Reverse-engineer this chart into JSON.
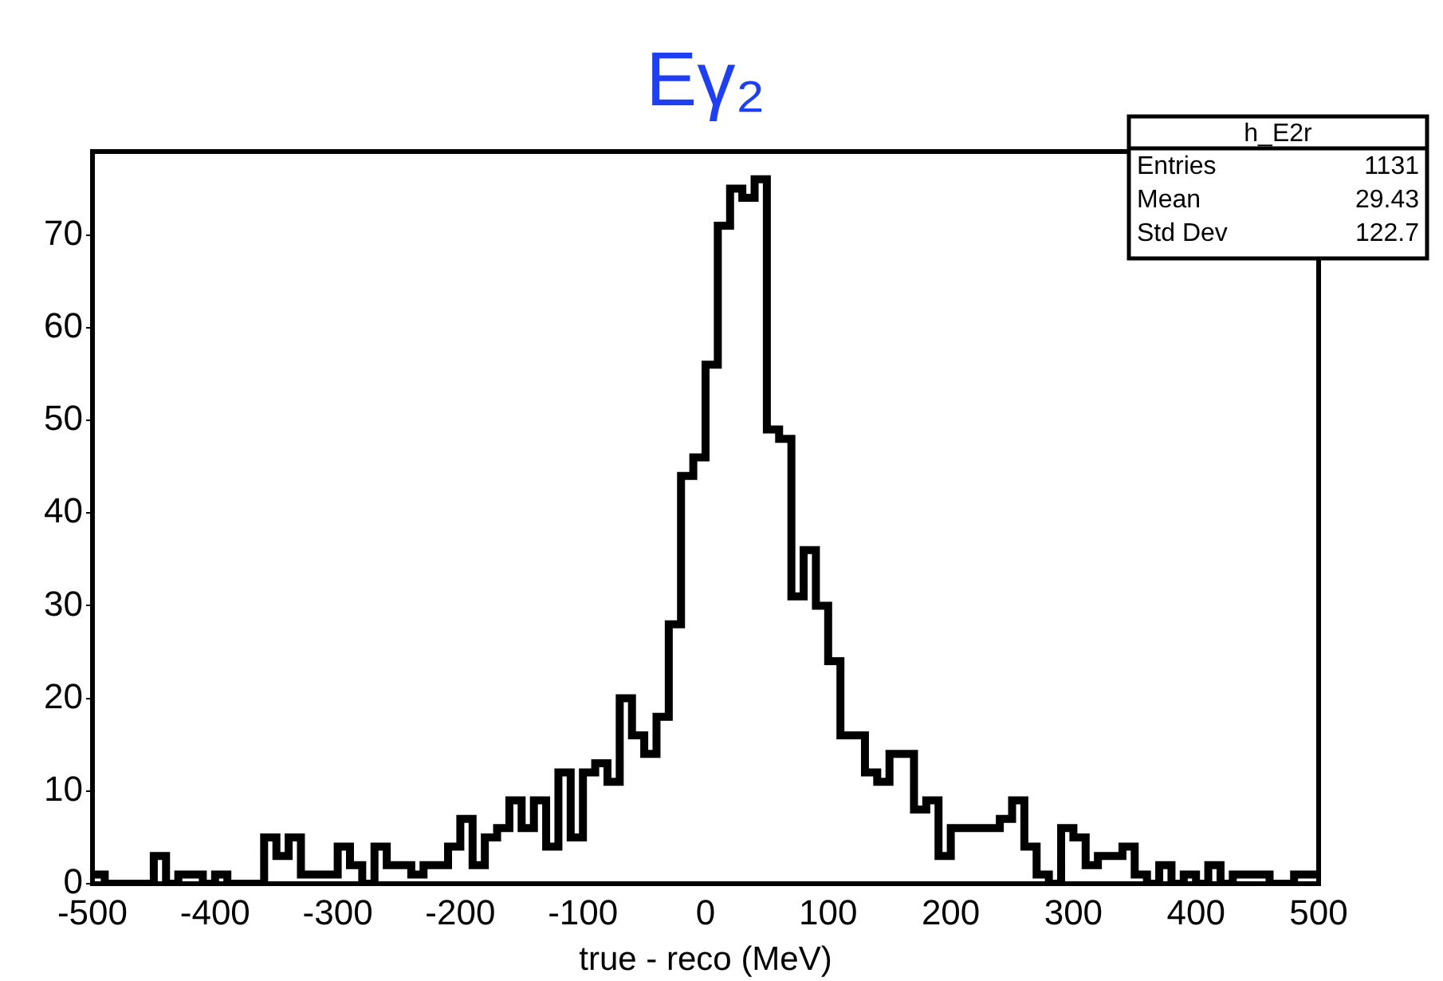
{
  "chart_data": {
    "type": "histogram",
    "title": "Eγ₂",
    "xlabel": "true - reco (MeV)",
    "bins": [
      -500,
      -490,
      -480,
      -470,
      -460,
      -450,
      -440,
      -430,
      -420,
      -410,
      -400,
      -390,
      -380,
      -370,
      -360,
      -350,
      -340,
      -330,
      -320,
      -310,
      -300,
      -290,
      -280,
      -270,
      -260,
      -250,
      -240,
      -230,
      -220,
      -210,
      -200,
      -190,
      -180,
      -170,
      -160,
      -150,
      -140,
      -130,
      -120,
      -110,
      -100,
      -90,
      -80,
      -70,
      -60,
      -50,
      -40,
      -30,
      -20,
      -10,
      0,
      10,
      20,
      30,
      40,
      50,
      60,
      70,
      80,
      90,
      100,
      110,
      120,
      130,
      140,
      150,
      160,
      170,
      180,
      190,
      200,
      210,
      220,
      230,
      240,
      250,
      260,
      270,
      280,
      290,
      300,
      310,
      320,
      330,
      340,
      350,
      360,
      370,
      380,
      390,
      400,
      410,
      420,
      430,
      440,
      450,
      460,
      470,
      480,
      490,
      500
    ],
    "values": [
      1,
      0,
      0,
      0,
      0,
      3,
      0,
      1,
      1,
      0,
      1,
      0,
      0,
      0,
      5,
      3,
      5,
      1,
      1,
      1,
      4,
      2,
      0,
      4,
      2,
      2,
      1,
      2,
      2,
      4,
      7,
      2,
      5,
      6,
      9,
      6,
      9,
      4,
      12,
      5,
      12,
      13,
      11,
      20,
      16,
      14,
      18,
      28,
      44,
      46,
      56,
      71,
      75,
      74,
      76,
      49,
      48,
      31,
      36,
      30,
      24,
      16,
      16,
      12,
      11,
      14,
      14,
      8,
      9,
      3,
      6,
      6,
      6,
      6,
      7,
      9,
      4,
      1,
      0,
      6,
      5,
      2,
      3,
      3,
      4,
      1,
      0,
      2,
      0,
      1,
      0,
      2,
      0,
      1,
      1,
      1,
      0,
      0,
      1,
      1
    ],
    "color": "#000000",
    "xlim": [
      -500,
      500
    ],
    "xticks": [
      -500,
      -400,
      -300,
      -200,
      -100,
      0,
      100,
      200,
      300,
      400,
      500
    ],
    "ylim": [
      0,
      79
    ],
    "yticks": [
      0,
      10,
      20,
      30,
      40,
      50,
      60,
      70
    ],
    "annotations": [
      "h_E2r",
      "Entries",
      "1131",
      "Mean",
      "29.43",
      "Std Dev",
      "122.7"
    ]
  }
}
